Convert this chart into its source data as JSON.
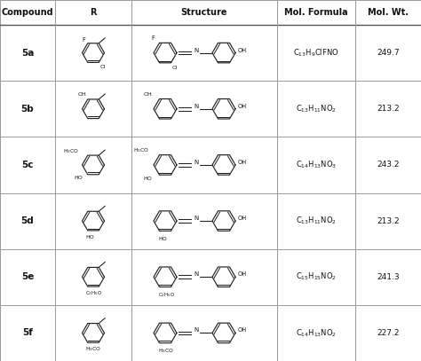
{
  "headers": [
    "Compound",
    "R",
    "Structure",
    "Mol. Formula",
    "Mol. Wt."
  ],
  "compounds": [
    "5a",
    "5b",
    "5c",
    "5d",
    "5e",
    "5f"
  ],
  "mol_formulas_display": [
    [
      "C",
      "13",
      "H",
      "9",
      "ClFNO"
    ],
    [
      "C",
      "13",
      "H",
      "11",
      "NO",
      "2"
    ],
    [
      "C",
      "14",
      "H",
      "13",
      "NO",
      "3"
    ],
    [
      "C",
      "13",
      "H",
      "11",
      "NO",
      "2"
    ],
    [
      "C",
      "15",
      "H",
      "15",
      "NO",
      "2"
    ],
    [
      "C",
      "14",
      "H",
      "13",
      "NO",
      "2"
    ]
  ],
  "mol_weights": [
    "249.7",
    "213.2",
    "243.2",
    "213.2",
    "241.3",
    "227.2"
  ],
  "line_color": "#999999",
  "text_color": "#111111",
  "fig_width": 4.74,
  "fig_height": 4.07,
  "font_size_header": 7.0,
  "font_size_body": 6.5,
  "font_size_compound": 7.5
}
